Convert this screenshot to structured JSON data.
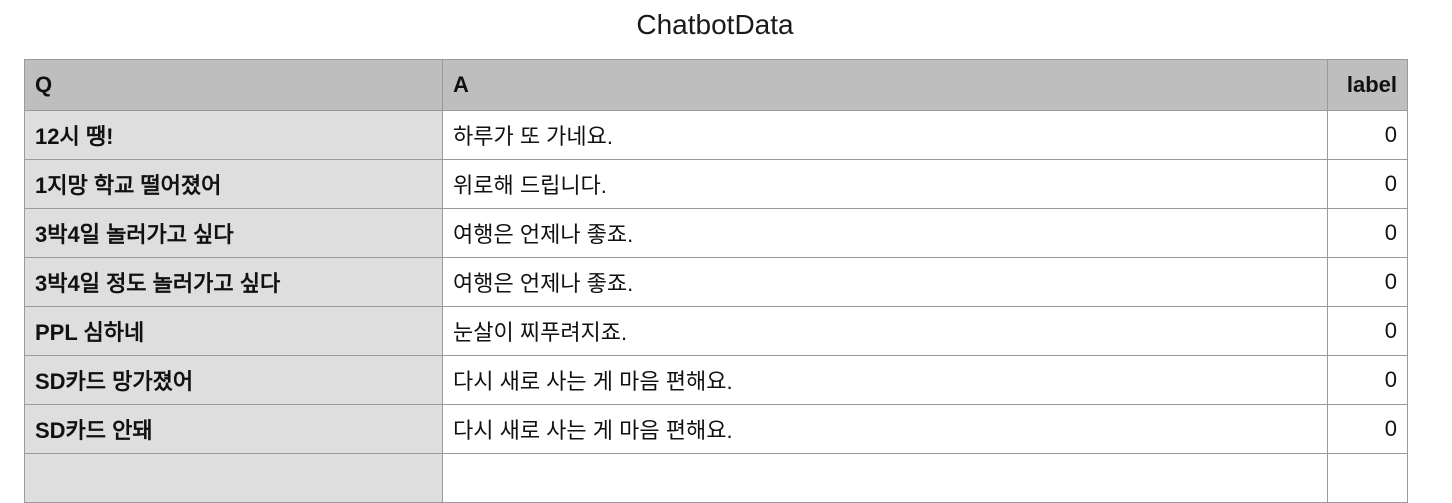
{
  "sheet": {
    "title": "ChatbotData"
  },
  "table": {
    "headers": {
      "q": "Q",
      "a": "A",
      "label": "label"
    },
    "rows": [
      {
        "q": "12시 땡!",
        "a": "하루가 또 가네요.",
        "label": "0"
      },
      {
        "q": "1지망 학교 떨어졌어",
        "a": "위로해 드립니다.",
        "label": "0"
      },
      {
        "q": "3박4일 놀러가고 싶다",
        "a": "여행은 언제나 좋죠.",
        "label": "0"
      },
      {
        "q": "3박4일 정도 놀러가고 싶다",
        "a": "여행은 언제나 좋죠.",
        "label": "0"
      },
      {
        "q": "PPL 심하네",
        "a": "눈살이 찌푸려지죠.",
        "label": "0"
      },
      {
        "q": "SD카드 망가졌어",
        "a": "다시 새로 사는 게 마음 편해요.",
        "label": "0"
      },
      {
        "q": "SD카드 안돼",
        "a": "다시 새로 사는 게 마음 편해요.",
        "label": "0"
      },
      {
        "q": "",
        "a": "",
        "label": ""
      }
    ]
  }
}
